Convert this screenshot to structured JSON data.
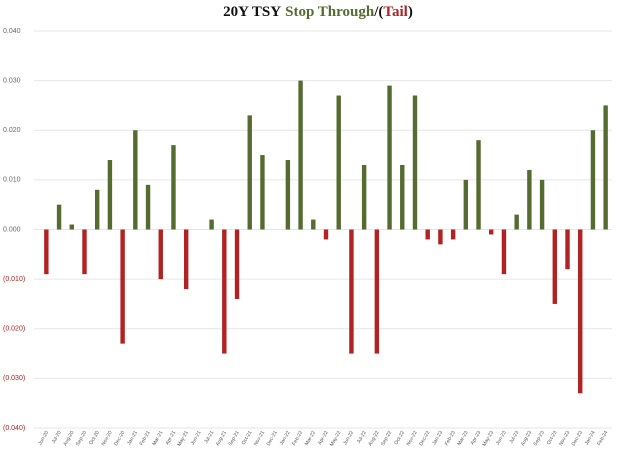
{
  "chart_data": {
    "type": "bar",
    "title_parts": [
      {
        "text": "20Y TSY",
        "color": "#111111"
      },
      {
        "text": "Stop Through",
        "color": "#556b2f"
      },
      {
        "text": "/(",
        "color": "#111111"
      },
      {
        "text": "Tail",
        "color": "#b22222"
      },
      {
        "text": ")",
        "color": "#111111"
      }
    ],
    "categories": [
      "Jun-20",
      "Jul-20",
      "Aug-20",
      "Sep-20",
      "Oct-20",
      "Nov-20",
      "Dec-20",
      "Jan-21",
      "Feb-21",
      "Mar-21",
      "Apr-21",
      "May-21",
      "Jun-21",
      "Jul-21",
      "Aug-21",
      "Sep-21",
      "Oct-21",
      "Nov-21",
      "Dec-21",
      "Jan-22",
      "Feb-22",
      "Mar-22",
      "Apr-22",
      "May-22",
      "Jun-22",
      "Jul-22",
      "Aug-22",
      "Sep-22",
      "Oct-22",
      "Nov-22",
      "Dec-22",
      "Jan-23",
      "Feb-23",
      "Mar-23",
      "Apr-23",
      "May-23",
      "Jun-23",
      "Jul-23",
      "Aug-23",
      "Sep-23",
      "Oct-23",
      "Nov-23",
      "Dec-23",
      "Jan-24",
      "Feb-24"
    ],
    "values": [
      -0.009,
      0.005,
      0.001,
      -0.009,
      0.008,
      0.014,
      -0.023,
      0.02,
      0.009,
      -0.01,
      0.017,
      -0.012,
      0,
      0.002,
      -0.025,
      -0.014,
      0.023,
      0.015,
      0,
      0.014,
      0.03,
      0.002,
      -0.002,
      0.027,
      -0.025,
      0.013,
      -0.025,
      0.029,
      0.013,
      0.027,
      -0.002,
      -0.003,
      -0.002,
      0.01,
      0.018,
      -0.001,
      -0.009,
      0.003,
      0.012,
      0.01,
      -0.015,
      -0.008,
      -0.033,
      0.02,
      0.025
    ],
    "positive_color": "#556b2f",
    "negative_color": "#b22222",
    "ylim": [
      -0.04,
      0.04
    ],
    "yticks": [
      {
        "value": 0.04,
        "label": "0.040"
      },
      {
        "value": 0.03,
        "label": "0.030"
      },
      {
        "value": 0.02,
        "label": "0.020"
      },
      {
        "value": 0.01,
        "label": "0.010"
      },
      {
        "value": 0,
        "label": "0.000"
      },
      {
        "value": -0.01,
        "label": "(0.010)"
      },
      {
        "value": -0.02,
        "label": "(0.020)"
      },
      {
        "value": -0.03,
        "label": "(0.030)"
      },
      {
        "value": -0.04,
        "label": "(0.040)"
      }
    ],
    "grid": true
  }
}
